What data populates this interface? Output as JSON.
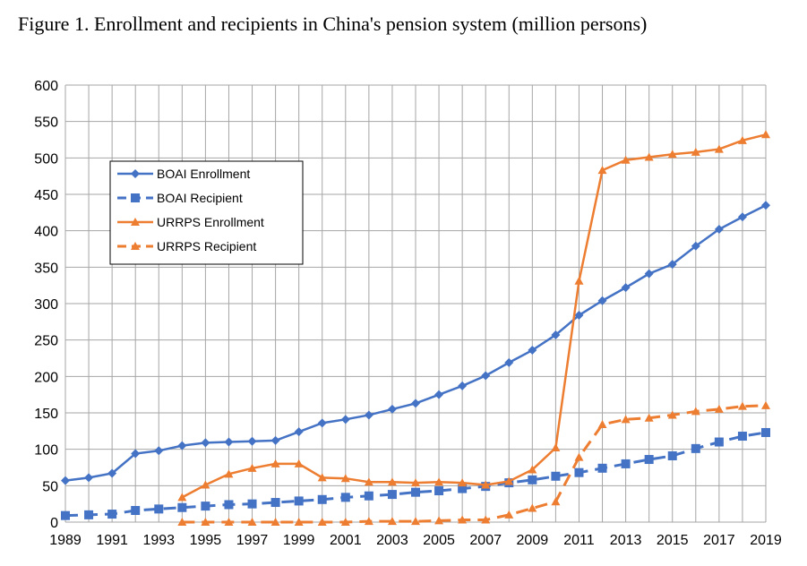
{
  "chart_data": {
    "type": "line",
    "title": "Figure 1. Enrollment and recipients in China's pension system (million persons)",
    "xlabel": "",
    "ylabel": "",
    "x": [
      1989,
      1990,
      1991,
      1992,
      1993,
      1994,
      1995,
      1996,
      1997,
      1998,
      1999,
      2000,
      2001,
      2002,
      2003,
      2004,
      2005,
      2006,
      2007,
      2008,
      2009,
      2010,
      2011,
      2012,
      2013,
      2014,
      2015,
      2016,
      2017,
      2018,
      2019
    ],
    "x_tick_labels": [
      "1989",
      "1991",
      "1993",
      "1995",
      "1997",
      "1999",
      "2001",
      "2003",
      "2005",
      "2007",
      "2009",
      "2011",
      "2013",
      "2015",
      "2017",
      "2019"
    ],
    "ylim": [
      0,
      600
    ],
    "y_ticks": [
      0,
      50,
      100,
      150,
      200,
      250,
      300,
      350,
      400,
      450,
      500,
      550,
      600
    ],
    "grid": true,
    "legend_position": "upper-left",
    "series": [
      {
        "name": "BOAI Enrollment",
        "color": "#4472C4",
        "dash": false,
        "marker": "diamond",
        "values": [
          57,
          61,
          67,
          94,
          98,
          105,
          109,
          110,
          111,
          112,
          124,
          136,
          141,
          147,
          155,
          163,
          175,
          187,
          201,
          219,
          236,
          257,
          284,
          304,
          322,
          341,
          354,
          379,
          402,
          419,
          435
        ]
      },
      {
        "name": "BOAI Recipient",
        "color": "#4472C4",
        "dash": true,
        "marker": "square",
        "values": [
          9,
          10,
          11,
          16,
          18,
          20,
          22,
          24,
          25,
          27,
          29,
          31,
          34,
          36,
          38,
          41,
          43,
          46,
          49,
          54,
          58,
          63,
          68,
          74,
          80,
          86,
          91,
          101,
          110,
          118,
          123
        ]
      },
      {
        "name": "URRPS Enrollment",
        "color": "#ED7D31",
        "dash": false,
        "marker": "triangle",
        "values": [
          null,
          null,
          null,
          null,
          null,
          34,
          51,
          66,
          74,
          80,
          80,
          61,
          60,
          55,
          55,
          54,
          55,
          54,
          51,
          56,
          72,
          102,
          331,
          483,
          497,
          501,
          505,
          508,
          512,
          524,
          532
        ]
      },
      {
        "name": "URRPS Recipient",
        "color": "#ED7D31",
        "dash": true,
        "marker": "triangle",
        "values": [
          null,
          null,
          null,
          null,
          null,
          0,
          0,
          0,
          0,
          0,
          0,
          0,
          0,
          1,
          1,
          1,
          2,
          3,
          3,
          10,
          19,
          28,
          89,
          134,
          141,
          143,
          147,
          152,
          155,
          159,
          160
        ]
      }
    ]
  }
}
